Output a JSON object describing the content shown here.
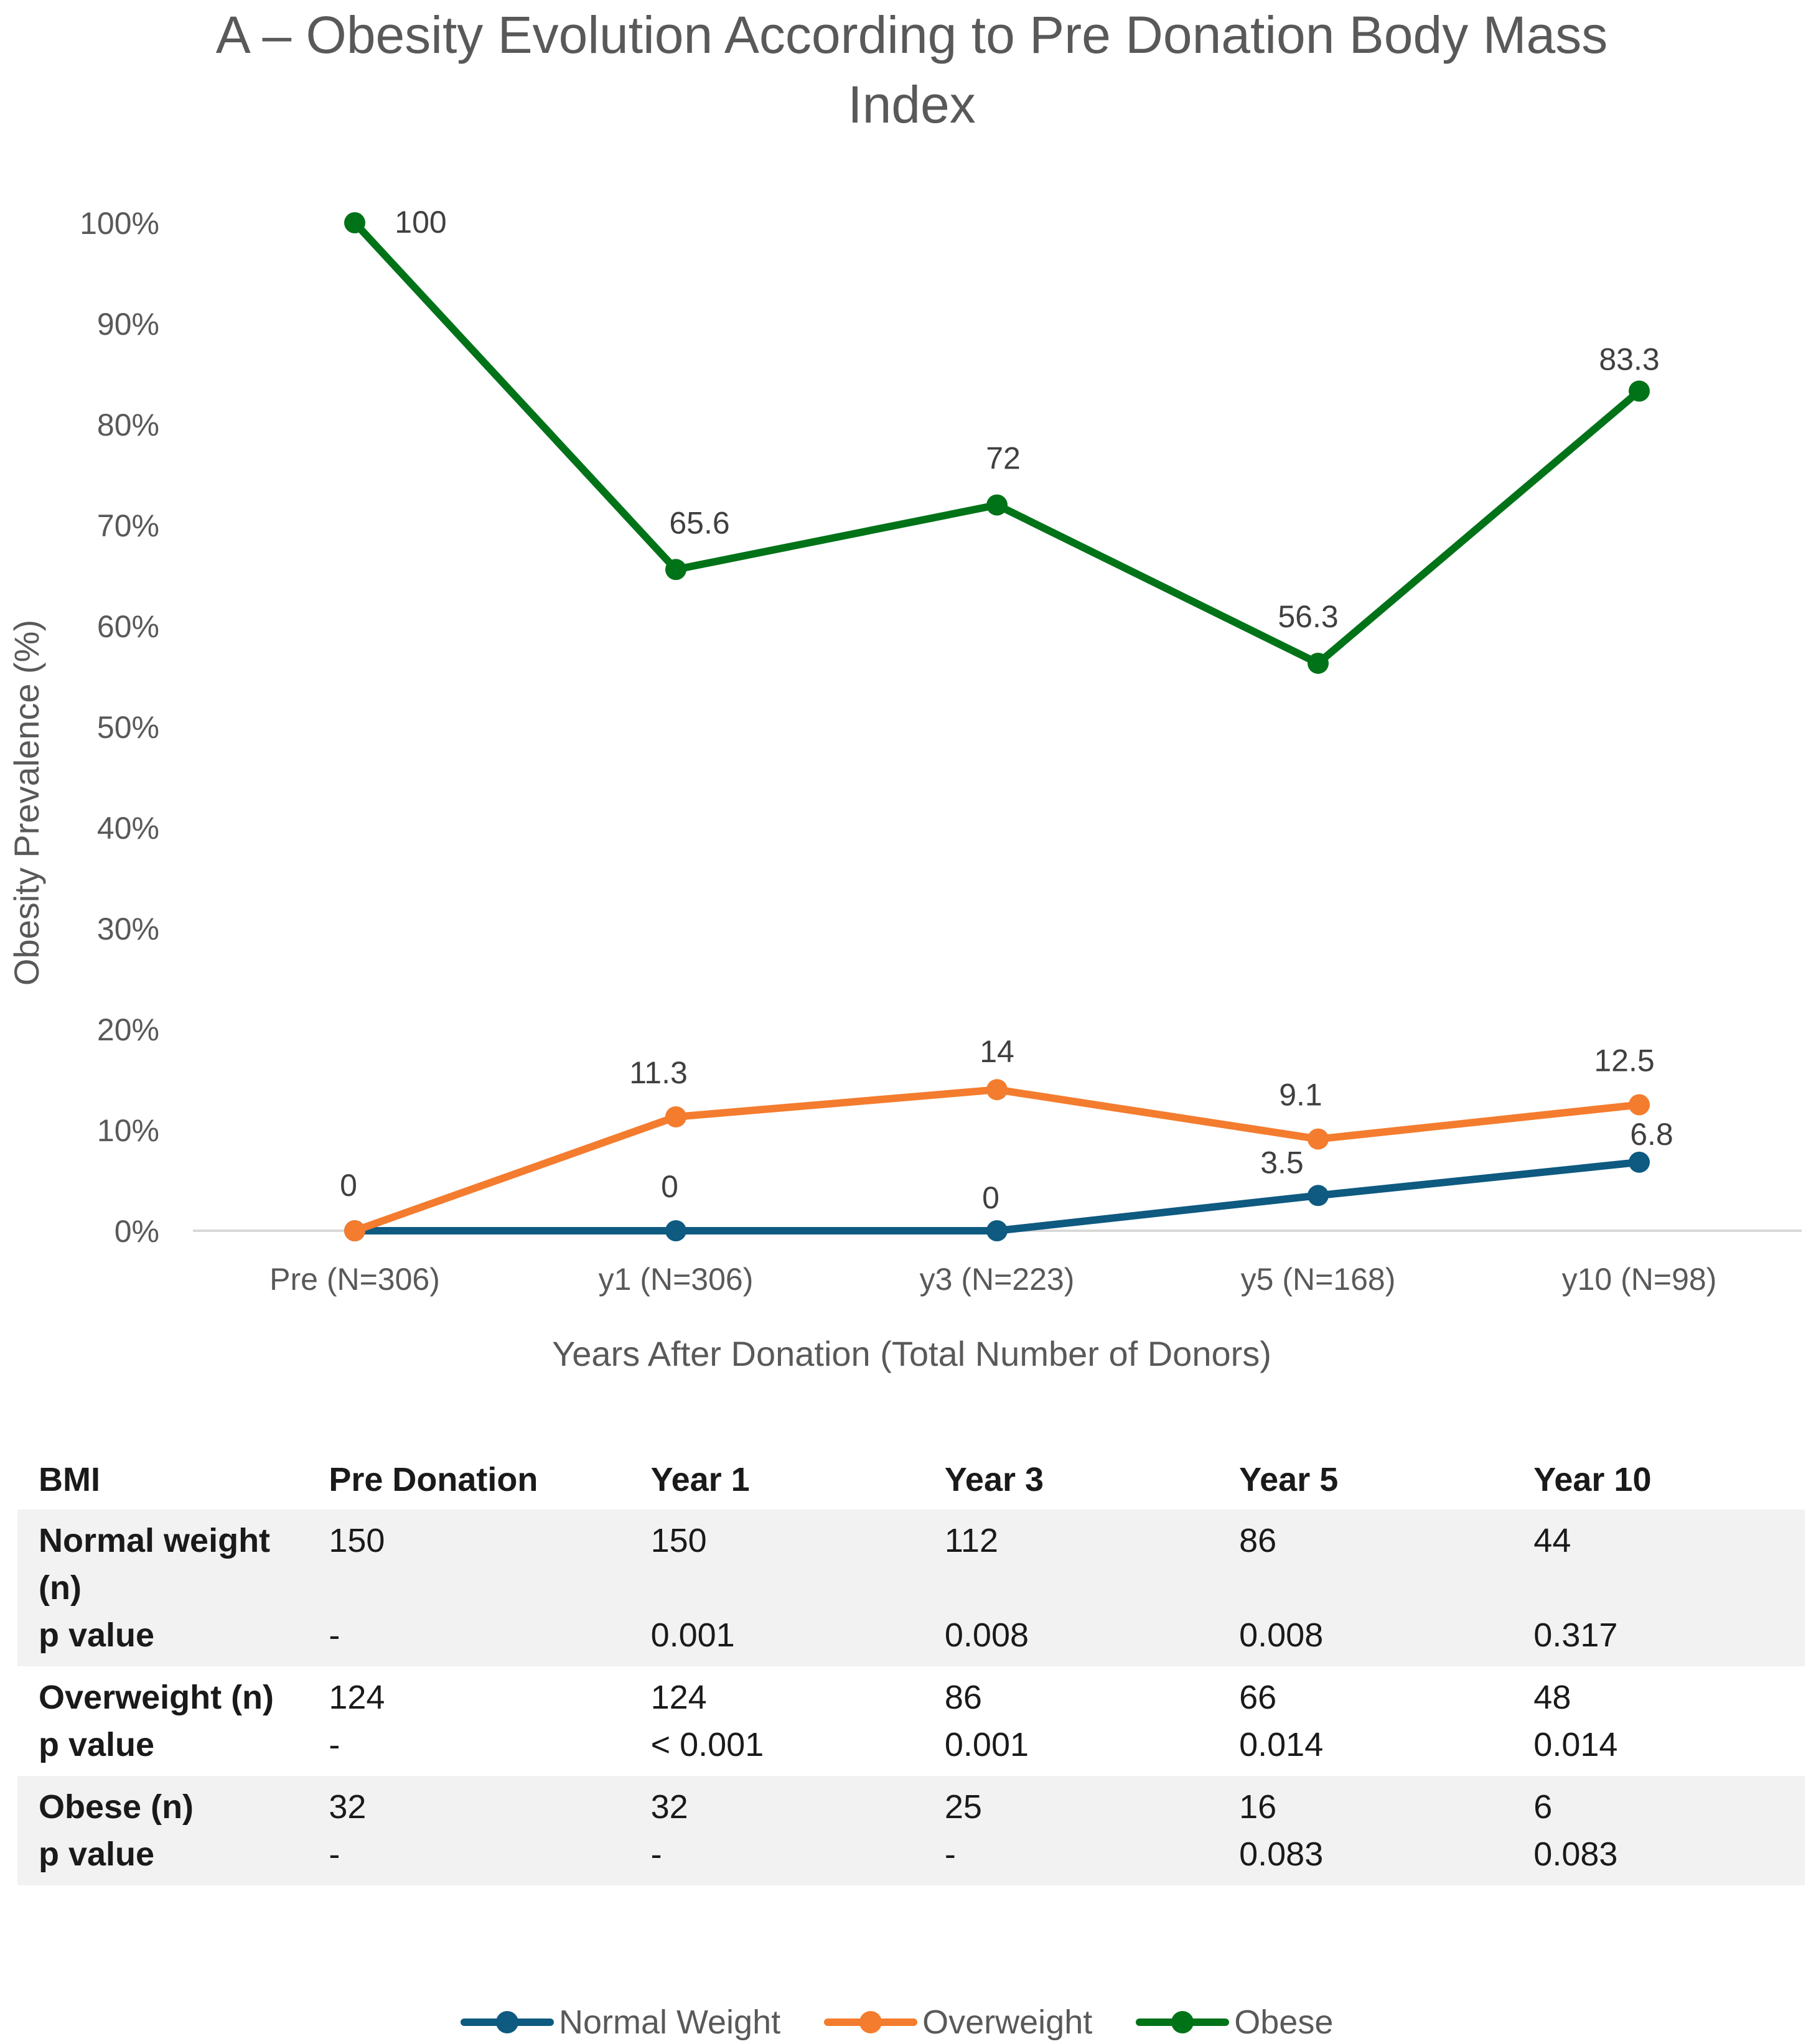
{
  "chart_data": {
    "type": "line",
    "title": "A – Obesity Evolution According to Pre Donation Body Mass Index",
    "title_lines": [
      "A – Obesity Evolution According to Pre Donation Body Mass",
      "Index"
    ],
    "xlabel": "Years After Donation (Total Number of Donors)",
    "ylabel": "Obesity Prevalence (%)",
    "ylim": [
      0,
      100
    ],
    "yticks": [
      0,
      10,
      20,
      30,
      40,
      50,
      60,
      70,
      80,
      90,
      100
    ],
    "ytick_labels": [
      "0%",
      "10%",
      "20%",
      "30%",
      "40%",
      "50%",
      "60%",
      "70%",
      "80%",
      "90%",
      "100%"
    ],
    "categories": [
      "Pre (N=306)",
      "y1 (N=306)",
      "y3 (N=223)",
      "y5 (N=168)",
      "y10 (N=98)"
    ],
    "series": [
      {
        "name": "Normal Weight",
        "color": "#0e5a80",
        "values": [
          0,
          0,
          0,
          3.5,
          6.8
        ],
        "labels": [
          "",
          "0",
          "0",
          "3.5",
          "6.8"
        ]
      },
      {
        "name": "Overweight",
        "color": "#f47c2e",
        "values": [
          0,
          11.3,
          14,
          9.1,
          12.5
        ],
        "labels": [
          "0",
          "11.3",
          "14",
          "9.1",
          "12.5"
        ]
      },
      {
        "name": "Obese",
        "color": "#007318",
        "values": [
          100,
          65.6,
          72,
          56.3,
          83.3
        ],
        "labels": [
          "100",
          "65.6",
          "72",
          "56.3",
          "83.3"
        ]
      }
    ],
    "legend_position": "bottom",
    "grid": false
  },
  "table": {
    "headers": [
      "BMI",
      "Pre Donation",
      "Year 1",
      "Year 3",
      "Year 5",
      "Year 10"
    ],
    "groups": [
      {
        "label": "Normal weight (n)",
        "counts": [
          "150",
          "150",
          "112",
          "86",
          "44"
        ],
        "p_label": "p value",
        "p_values": [
          "-",
          "0.001",
          "0.008",
          "0.008",
          "0.317"
        ]
      },
      {
        "label": "Overweight (n)",
        "counts": [
          "124",
          "124",
          "86",
          "66",
          "48"
        ],
        "p_label": "p value",
        "p_values": [
          "-",
          "< 0.001",
          "0.001",
          "0.014",
          "0.014"
        ]
      },
      {
        "label": "Obese (n)",
        "counts": [
          "32",
          "32",
          "25",
          "16",
          "6"
        ],
        "p_label": "p value",
        "p_values": [
          "-",
          "-",
          "-",
          "0.083",
          "0.083"
        ]
      }
    ]
  }
}
